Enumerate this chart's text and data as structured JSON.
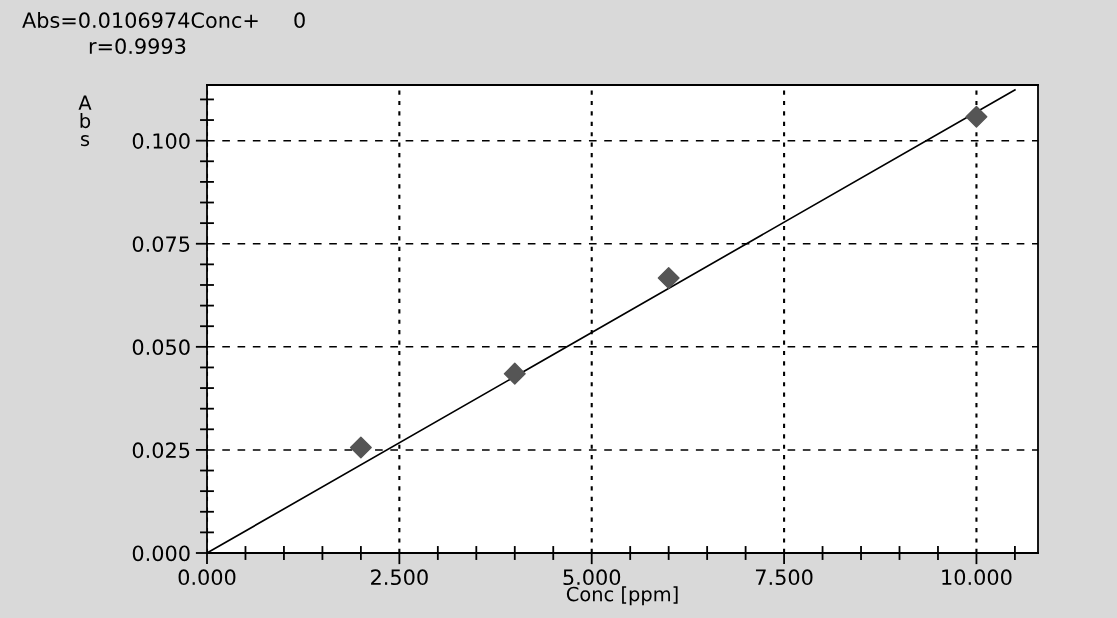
{
  "chart_data": {
    "type": "scatter",
    "xlabel": "Conc [ppm]",
    "ylabel": "A\nb\ns",
    "annotations": [
      "Abs=0.0106974Conc+     0",
      "r=0.9993"
    ],
    "series": [
      {
        "color": "#555555",
        "x": [
          2.0,
          4.0,
          6.0,
          10.0
        ],
        "values": [
          0.0256,
          0.0435,
          0.0667,
          0.1058
        ],
        "marker": "diamond"
      },
      {
        "type": "line",
        "color": "#000000",
        "x": [
          0,
          10.5
        ],
        "values": [
          0,
          0.1123
        ],
        "line_style": "solid"
      }
    ],
    "xlim": [
      0,
      10.8
    ],
    "ylim": [
      0,
      0.1135
    ],
    "xticks": [
      {
        "value": 0,
        "label": "0.000"
      },
      {
        "value": 2.5,
        "label": "2.500"
      },
      {
        "value": 5,
        "label": "5.000"
      },
      {
        "value": 7.5,
        "label": "7.500"
      },
      {
        "value": 10,
        "label": "10.000"
      }
    ],
    "yticks": [
      {
        "value": 0,
        "label": "0.000"
      },
      {
        "value": 0.025,
        "label": "0.025"
      },
      {
        "value": 0.05,
        "label": "0.050"
      },
      {
        "value": 0.075,
        "label": "0.075"
      },
      {
        "value": 0.1,
        "label": "0.100"
      }
    ],
    "grid": true,
    "legend": false
  }
}
